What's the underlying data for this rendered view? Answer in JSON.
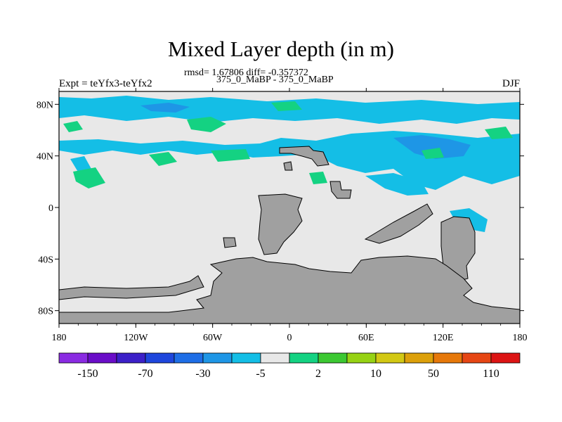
{
  "title": "Mixed Layer depth (in m)",
  "stats": "rmsd= 1.67806 diff= -0.357372",
  "subtitle": "375_0_MaBP - 375_0_MaBP",
  "left_label": "Expt = teYfx3-teYfx2",
  "right_label": "DJF",
  "map": {
    "lon_ticks": [
      "180",
      "120W",
      "60W",
      "0",
      "60E",
      "120E",
      "180"
    ],
    "lat_ticks": [
      "80N",
      "40N",
      "0",
      "40S",
      "80S"
    ],
    "lon_range": [
      -180,
      180
    ],
    "lat_range": [
      -90,
      90
    ],
    "land_color": "#a0a0a0",
    "background_color": "#e8e8e8"
  },
  "colorbar": {
    "colors": [
      "#8a2be2",
      "#6a0dc8",
      "#3c20c8",
      "#1e46dc",
      "#1e6ee6",
      "#1e96e6",
      "#14bee6",
      "#e8e8e8",
      "#14d282",
      "#3cc832",
      "#96d214",
      "#d2c814",
      "#dca00a",
      "#e6780a",
      "#e64614",
      "#dc1414"
    ],
    "labels": [
      "-150",
      "-70",
      "-30",
      "-5",
      "2",
      "10",
      "50",
      "110"
    ]
  }
}
